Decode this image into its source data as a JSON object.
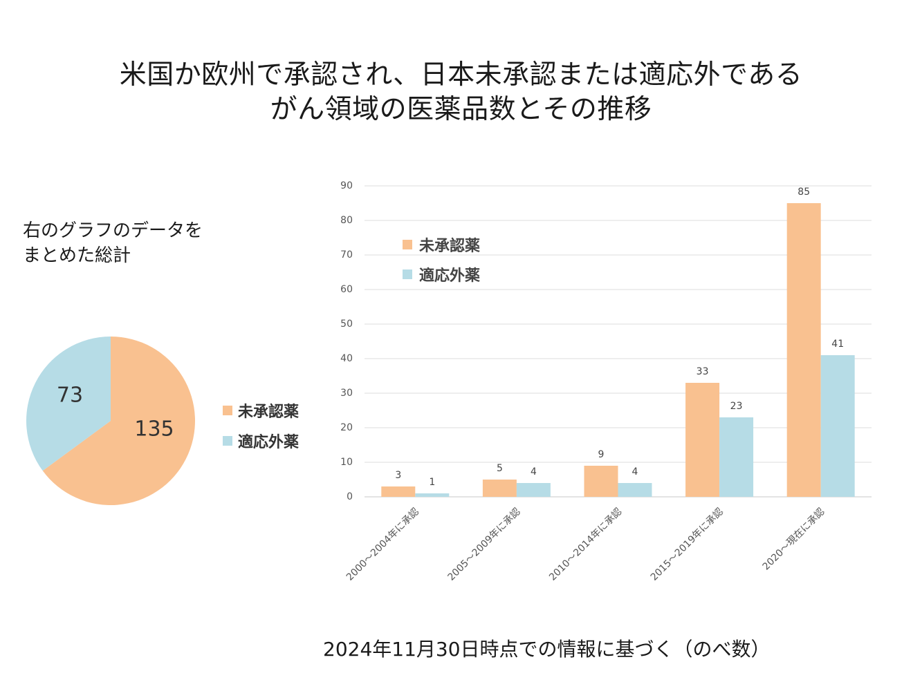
{
  "title": {
    "line1": "米国か欧州で承認され、日本未承認または適応外である",
    "line2": "がん領域の医薬品数とその推移"
  },
  "summary": {
    "caption_line1": "右のグラフのデータを",
    "caption_line2": "まとめた総計"
  },
  "colors": {
    "unapproved": "#F9C190",
    "offlabel": "#B6DCE6"
  },
  "footnote": "2024年11月30日時点での情報に基づく（のべ数）",
  "chart_data": [
    {
      "type": "pie",
      "slices": [
        {
          "label": "未承認薬",
          "value": 135
        },
        {
          "label": "適応外薬",
          "value": 73
        }
      ],
      "legend": [
        "未承認薬",
        "適応外薬"
      ],
      "legend_position": "right"
    },
    {
      "type": "bar",
      "categories": [
        "2000～2004年に承認",
        "2005～2009年に承認",
        "2010～2014年に承認",
        "2015～2019年に承認",
        "2020～現在に承認"
      ],
      "series": [
        {
          "name": "未承認薬",
          "values": [
            3,
            5,
            9,
            33,
            85
          ]
        },
        {
          "name": "適応外薬",
          "values": [
            1,
            4,
            4,
            23,
            41
          ]
        }
      ],
      "ylim": [
        0,
        90
      ],
      "yticks": [
        0,
        10,
        20,
        30,
        40,
        50,
        60,
        70,
        80,
        90
      ],
      "grid": true,
      "legend_position": "top-left"
    }
  ]
}
